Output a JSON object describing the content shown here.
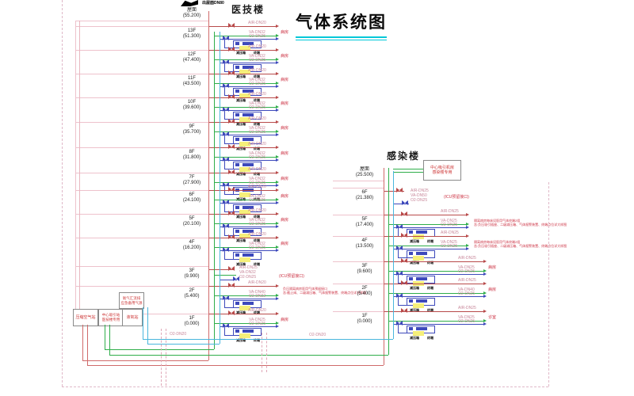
{
  "title": "气体系统图",
  "buildings": {
    "medical": {
      "label": "医技楼",
      "roof_label": "屋面",
      "roof_elev": "(55.200)",
      "roof_note": "出屋面DN80",
      "floors": [
        {
          "name": "13F",
          "elev": "(51.300)",
          "kind": "unit",
          "pipes": [
            "AIR-DN20",
            "VA-DN32",
            "O2-DN25"
          ],
          "note": "病房"
        },
        {
          "name": "12F",
          "elev": "(47.400)",
          "kind": "unit",
          "pipes": [
            "AIR-DN20",
            "VA-DN32",
            "O2-DN25"
          ],
          "note": "病房"
        },
        {
          "name": "11F",
          "elev": "(43.500)",
          "kind": "unit",
          "pipes": [
            "AIR-DN20",
            "VA-DN32",
            "O2-DN25"
          ],
          "note": "病房"
        },
        {
          "name": "10F",
          "elev": "(39.600)",
          "kind": "unit",
          "pipes": [
            "AIR-DN20",
            "VA-DN32",
            "O2-DN25"
          ],
          "note": "病房"
        },
        {
          "name": "9F",
          "elev": "(35.700)",
          "kind": "unit",
          "pipes": [
            "AIR-DN20",
            "VA-DN32",
            "O2-DN25"
          ],
          "note": "病房"
        },
        {
          "name": "8F",
          "elev": "(31.800)",
          "kind": "unit",
          "pipes": [
            "AIR-DN20",
            "VA-DN32",
            "O2-DN25"
          ],
          "note": "病房"
        },
        {
          "name": "7F",
          "elev": "(27.900)",
          "kind": "unit",
          "pipes": [
            "AIR-DN20",
            "VA-DN32",
            "O2-DN25"
          ],
          "note": "病房"
        },
        {
          "name": "6F",
          "elev": "(24.100)",
          "kind": "unit",
          "pipes": [
            "AIR-DN20",
            "VA-DN32",
            "O2-DN25"
          ],
          "note": "病房"
        },
        {
          "name": "5F",
          "elev": "(20.100)",
          "kind": "unit",
          "pipes": [
            "AIR-DN20",
            "VA-DN32",
            "O2-DN25"
          ],
          "note": "病房"
        },
        {
          "name": "4F",
          "elev": "(16.200)",
          "kind": "unit",
          "pipes": [
            "AIR-DN20",
            "VA-DN32",
            "O2-DN25"
          ],
          "note": "病房"
        },
        {
          "name": "3F",
          "elev": "(9.900)",
          "kind": "stub",
          "pipes": [
            "AIR-DN25",
            "VA-DN32",
            "O2-DN25"
          ],
          "note": "(ICU预留接口)"
        },
        {
          "name": "2F",
          "elev": "(5.400)",
          "kind": "unit",
          "pipes": [
            "AIR-DN20",
            "VA-DN40",
            "O2-DN32"
          ],
          "annotation": [
            "负压隔离病房医用气体预留接口",
            "含:截止阀、二级减压箱、气体报警装置、终端点位详大样图"
          ]
        },
        {
          "name": "1F",
          "elev": "(0.000)",
          "kind": "unit",
          "pipes": [
            "AIR-DN20",
            "VA-DN25",
            "O2-DN25"
          ],
          "note": "病房"
        }
      ]
    },
    "infection": {
      "label": "感染楼",
      "roof_label": "屋面",
      "roof_elev": "(25.500)",
      "machine_room": [
        "中心吸引机房",
        "感染楼专用"
      ],
      "floors": [
        {
          "name": "6F",
          "elev": "(21.380)",
          "kind": "stub",
          "pipes": [
            "AIR-DN25",
            "VA-DN50",
            "O2-DN25"
          ],
          "note": "(ICU预留接口)"
        },
        {
          "name": "5F",
          "elev": "(17.400)",
          "kind": "unit",
          "pipes": [
            "AIR-DN25",
            "VA-DN25",
            "O2-DN25"
          ],
          "annotation": [
            "隔离病房每床设医用气体终端2组",
            "含:负压吸引插座、二级减压箱、气体报警装置、终端点位详大样图"
          ]
        },
        {
          "name": "4F",
          "elev": "(13.500)",
          "kind": "unit",
          "pipes": [
            "AIR-DN25",
            "VA-DN25",
            "O2-DN25"
          ],
          "annotation": [
            "隔离病房每床设医用气体终端2组",
            "含:负压吸引插座、二级减压箱、气体报警装置、终端点位详大样图"
          ]
        },
        {
          "name": "3F",
          "elev": "(9.600)",
          "kind": "unit",
          "pipes": [
            "AIR-DN25",
            "VA-DN25",
            "O2-DN25"
          ],
          "note": "病房"
        },
        {
          "name": "2F",
          "elev": "(5.400)",
          "kind": "unit",
          "pipes": [
            "AIR-DN25",
            "VA-DN40",
            "O2-DN25"
          ],
          "note": "病房"
        },
        {
          "name": "1F",
          "elev": "(0.000)",
          "kind": "unit",
          "pipes": [
            "AIR-DN25",
            "VA-DN25",
            "O2-DN25"
          ],
          "note": "诊室"
        }
      ]
    }
  },
  "stations": [
    {
      "id": "air",
      "lines": [
        "压缩空气站"
      ]
    },
    {
      "id": "suction",
      "lines": [
        "中心吸引站",
        "医技楼专用"
      ]
    },
    {
      "id": "lox",
      "lines": [
        "液氧站"
      ]
    },
    {
      "id": "manifold",
      "lines": [
        "氧气汇流排",
        "应急备用气源"
      ]
    }
  ],
  "run_labels": [
    "O2-DN20",
    "O2-DN20"
  ],
  "component_labels": [
    "减压箱",
    "终端"
  ],
  "colors": {
    "air_line": "#b84a4a",
    "air_riser": "#d06a6a",
    "va_line": "#2fae4a",
    "o2_line": "#3d49bb",
    "o2_riser": "#49b6dd",
    "label_pink": "#c8879a",
    "note_red": "#cc3344",
    "accent_cyan": "#00c8d8",
    "highlight_yellow": "#f5ef7a",
    "datum_pink": "#eec2cc"
  }
}
